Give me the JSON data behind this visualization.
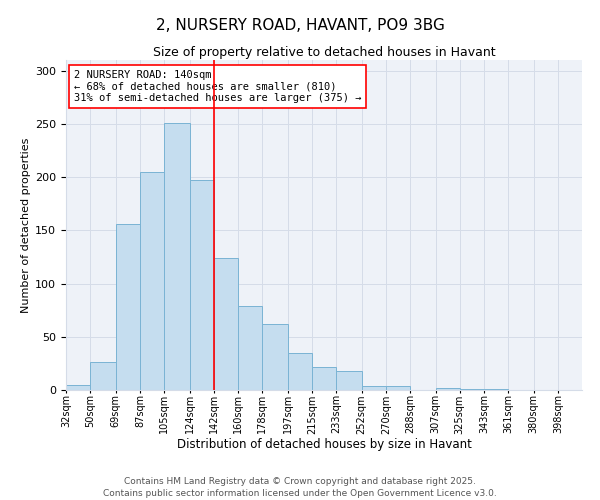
{
  "title": "2, NURSERY ROAD, HAVANT, PO9 3BG",
  "subtitle": "Size of property relative to detached houses in Havant",
  "xlabel": "Distribution of detached houses by size in Havant",
  "ylabel": "Number of detached properties",
  "bin_labels": [
    "32sqm",
    "50sqm",
    "69sqm",
    "87sqm",
    "105sqm",
    "124sqm",
    "142sqm",
    "160sqm",
    "178sqm",
    "197sqm",
    "215sqm",
    "233sqm",
    "252sqm",
    "270sqm",
    "288sqm",
    "307sqm",
    "325sqm",
    "343sqm",
    "361sqm",
    "380sqm",
    "398sqm"
  ],
  "bin_edges": [
    32,
    50,
    69,
    87,
    105,
    124,
    142,
    160,
    178,
    197,
    215,
    233,
    252,
    270,
    288,
    307,
    325,
    343,
    361,
    380,
    398
  ],
  "counts": [
    5,
    26,
    156,
    205,
    251,
    197,
    124,
    79,
    62,
    35,
    22,
    18,
    4,
    4,
    0,
    2,
    1,
    1,
    0,
    0,
    0
  ],
  "bar_color": "#c5ddef",
  "bar_edge_color": "#7ab3d4",
  "vline_x": 142,
  "vline_color": "red",
  "annotation_text": "2 NURSERY ROAD: 140sqm\n← 68% of detached houses are smaller (810)\n31% of semi-detached houses are larger (375) →",
  "annotation_box_color": "white",
  "annotation_box_edge_color": "red",
  "ylim": [
    0,
    310
  ],
  "yticks": [
    0,
    50,
    100,
    150,
    200,
    250,
    300
  ],
  "footnote": "Contains HM Land Registry data © Crown copyright and database right 2025.\nContains public sector information licensed under the Open Government Licence v3.0.",
  "title_fontsize": 11,
  "subtitle_fontsize": 9,
  "annotation_fontsize": 7.5,
  "xlabel_fontsize": 8.5,
  "ylabel_fontsize": 8,
  "tick_fontsize": 7,
  "ytick_fontsize": 8,
  "footnote_fontsize": 6.5,
  "bg_color": "#eef2f8",
  "grid_color": "#d5dce8"
}
